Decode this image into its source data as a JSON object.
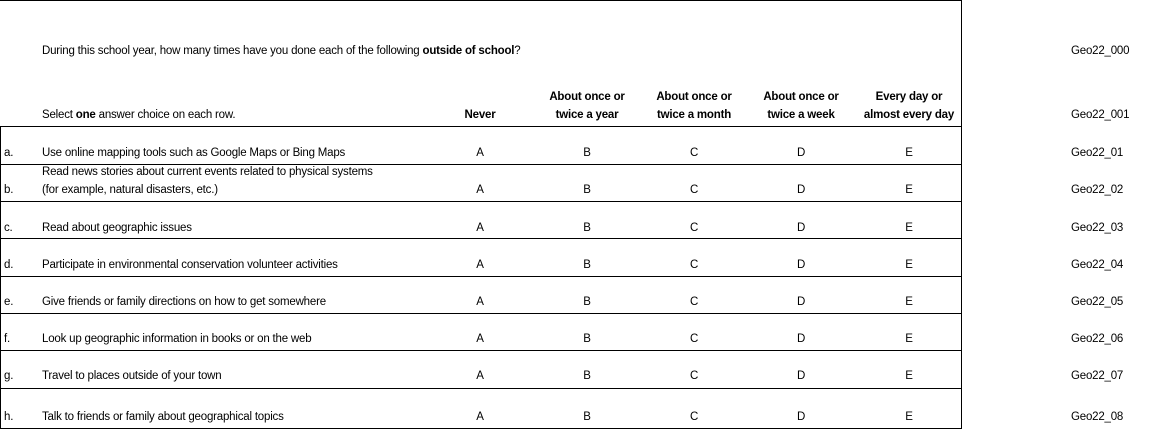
{
  "question": {
    "pre": "During this school year, how many times have you done each of the following ",
    "bold": "outside of school",
    "post": "?",
    "code": "Geo22_000"
  },
  "instruction": {
    "pre": "Select ",
    "bold": "one",
    "post": " answer choice on each row.",
    "code": "Geo22_001"
  },
  "columns": [
    {
      "l1": "",
      "l2": "Never"
    },
    {
      "l1": "About once or",
      "l2": "twice a year"
    },
    {
      "l1": "About once or",
      "l2": "twice a month"
    },
    {
      "l1": "About once or",
      "l2": "twice a week"
    },
    {
      "l1": "Every day or",
      "l2": "almost every day"
    }
  ],
  "choices": [
    "A",
    "B",
    "C",
    "D",
    "E"
  ],
  "rows": [
    {
      "letter": "a.",
      "text": "Use online mapping tools such as Google Maps or Bing Maps",
      "text2": "",
      "code": "Geo22_01"
    },
    {
      "letter": "b.",
      "text": "Read news stories about current events related to physical systems",
      "text2": "(for example, natural disasters, etc.)",
      "code": "Geo22_02"
    },
    {
      "letter": "c.",
      "text": "Read about geographic issues",
      "text2": "",
      "code": "Geo22_03"
    },
    {
      "letter": "d.",
      "text": "Participate in environmental conservation volunteer activities",
      "text2": "",
      "code": "Geo22_04"
    },
    {
      "letter": "e.",
      "text": "Give friends or family directions on how to get somewhere",
      "text2": "",
      "code": "Geo22_05"
    },
    {
      "letter": "f.",
      "text": "Look up geographic information in books or on the web",
      "text2": "",
      "code": "Geo22_06"
    },
    {
      "letter": "g.",
      "text": "Travel to places outside of your town",
      "text2": "",
      "code": "Geo22_07"
    },
    {
      "letter": "h.",
      "text": "Talk to friends or family about geographical topics",
      "text2": "",
      "code": "Geo22_08"
    }
  ]
}
